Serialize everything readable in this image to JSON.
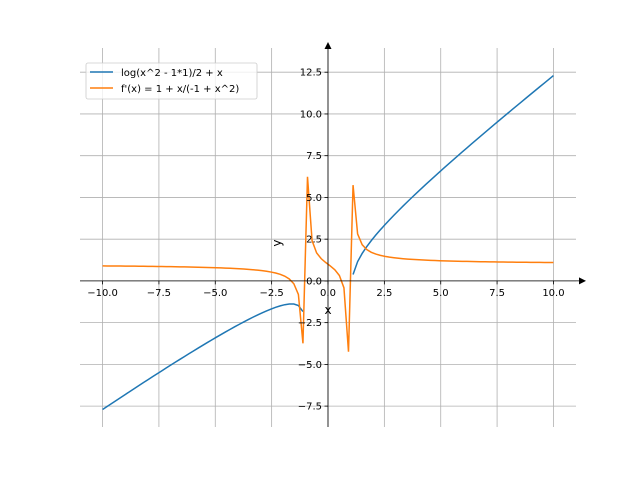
{
  "chart_data": {
    "type": "line",
    "title": "",
    "xlabel": "x",
    "ylabel": "y",
    "xlim": [
      -11.0,
      11.0
    ],
    "ylim": [
      -8.75,
      13.95
    ],
    "grid": true,
    "legend_position": "top-left",
    "x_sampling": {
      "start": -10,
      "stop": 10,
      "num": 100
    },
    "xticks": [
      -10,
      -7.5,
      -5,
      -2.5,
      0,
      2.5,
      5,
      7.5,
      10
    ],
    "xtick_labels": [
      "−10.0",
      "−7.5",
      "−5.0",
      "−2.5",
      "0.0",
      "2.5",
      "5.0",
      "7.5",
      "10.0"
    ],
    "yticks": [
      -7.5,
      -5,
      -2.5,
      0,
      2.5,
      5,
      7.5,
      10,
      12.5
    ],
    "ytick_labels": [
      "−7.5",
      "−5.0",
      "−2.5",
      "0.0",
      "2.5",
      "5.0",
      "7.5",
      "10.0",
      "12.5"
    ],
    "series": [
      {
        "name": "log(x^2 - 1*1)/2 + x",
        "expr": "log(x^2-1)/2 + x",
        "color": "#1f77b4"
      },
      {
        "name": "f'(x) = 1 + x/(-1 + x^2)",
        "expr": "1 + x/(x^2-1)",
        "color": "#ff7f0e"
      }
    ]
  }
}
